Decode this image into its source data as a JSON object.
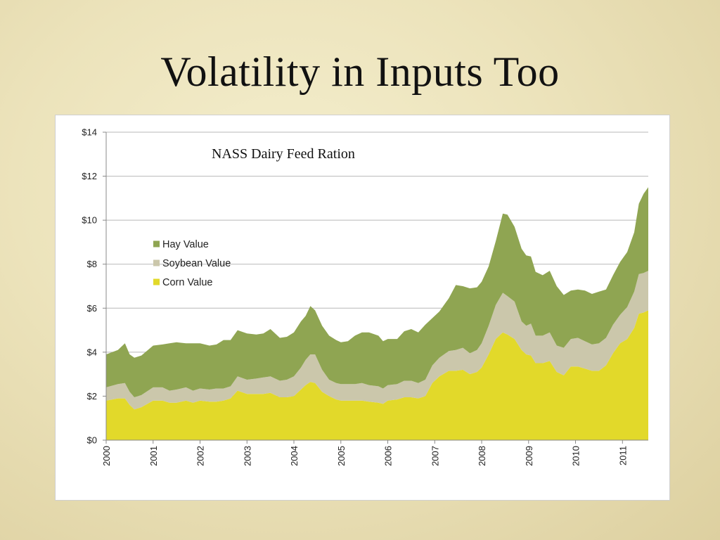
{
  "slide": {
    "title": "Volatility in Inputs Too"
  },
  "chart_data": {
    "type": "area",
    "stacked": true,
    "title": "NASS Dairy Feed Ration",
    "xlabel": "",
    "ylabel": "",
    "ylim": [
      0,
      14
    ],
    "xlim": [
      2000,
      2011.55
    ],
    "y_ticks": [
      "$0",
      "$2",
      "$4",
      "$6",
      "$8",
      "$10",
      "$12",
      "$14"
    ],
    "x_ticks": [
      "2000",
      "2001",
      "2002",
      "2003",
      "2004",
      "2005",
      "2006",
      "2007",
      "2008",
      "2009",
      "2010",
      "2011"
    ],
    "grid": true,
    "legend_position": "left-middle",
    "x": [
      2000.0,
      2000.25,
      2000.4,
      2000.5,
      2000.6,
      2000.75,
      2001.0,
      2001.2,
      2001.35,
      2001.5,
      2001.7,
      2001.85,
      2002.0,
      2002.2,
      2002.35,
      2002.5,
      2002.65,
      2002.8,
      2003.0,
      2003.2,
      2003.35,
      2003.5,
      2003.7,
      2003.85,
      2004.0,
      2004.15,
      2004.25,
      2004.35,
      2004.45,
      2004.6,
      2004.75,
      2004.9,
      2005.0,
      2005.15,
      2005.3,
      2005.45,
      2005.6,
      2005.8,
      2005.9,
      2006.0,
      2006.2,
      2006.35,
      2006.5,
      2006.65,
      2006.8,
      2006.95,
      2007.1,
      2007.3,
      2007.45,
      2007.6,
      2007.75,
      2007.9,
      2008.0,
      2008.15,
      2008.3,
      2008.45,
      2008.55,
      2008.7,
      2008.85,
      2008.95,
      2009.05,
      2009.15,
      2009.3,
      2009.45,
      2009.6,
      2009.75,
      2009.9,
      2010.05,
      2010.2,
      2010.35,
      2010.5,
      2010.65,
      2010.8,
      2010.95,
      2011.1,
      2011.25,
      2011.35,
      2011.45,
      2011.55
    ],
    "series": [
      {
        "name": "Corn Value",
        "color": "#e2d92a",
        "values": [
          1.8,
          1.9,
          1.9,
          1.6,
          1.4,
          1.5,
          1.8,
          1.8,
          1.7,
          1.7,
          1.8,
          1.7,
          1.8,
          1.75,
          1.75,
          1.8,
          1.9,
          2.25,
          2.1,
          2.1,
          2.1,
          2.15,
          1.95,
          1.95,
          2.0,
          2.3,
          2.5,
          2.65,
          2.6,
          2.2,
          2.0,
          1.85,
          1.8,
          1.8,
          1.8,
          1.8,
          1.75,
          1.7,
          1.65,
          1.8,
          1.85,
          1.95,
          1.95,
          1.9,
          2.0,
          2.6,
          2.9,
          3.15,
          3.15,
          3.2,
          3.0,
          3.1,
          3.3,
          3.9,
          4.6,
          4.9,
          4.8,
          4.6,
          4.1,
          3.9,
          3.85,
          3.5,
          3.5,
          3.6,
          3.1,
          2.95,
          3.35,
          3.35,
          3.25,
          3.15,
          3.15,
          3.4,
          3.95,
          4.4,
          4.6,
          5.1,
          5.75,
          5.8,
          5.9
        ]
      },
      {
        "name": "Soybean Value",
        "color": "#cbc7ab",
        "values": [
          0.6,
          0.65,
          0.7,
          0.6,
          0.55,
          0.55,
          0.6,
          0.6,
          0.55,
          0.6,
          0.6,
          0.55,
          0.55,
          0.55,
          0.6,
          0.55,
          0.55,
          0.65,
          0.65,
          0.7,
          0.75,
          0.75,
          0.75,
          0.8,
          0.9,
          1.0,
          1.15,
          1.25,
          1.3,
          1.0,
          0.75,
          0.75,
          0.75,
          0.75,
          0.75,
          0.8,
          0.75,
          0.75,
          0.7,
          0.7,
          0.7,
          0.75,
          0.75,
          0.7,
          0.75,
          0.8,
          0.85,
          0.9,
          0.95,
          1.0,
          0.95,
          1.0,
          1.1,
          1.3,
          1.55,
          1.8,
          1.75,
          1.7,
          1.3,
          1.3,
          1.45,
          1.25,
          1.25,
          1.3,
          1.2,
          1.25,
          1.25,
          1.3,
          1.25,
          1.2,
          1.25,
          1.25,
          1.3,
          1.3,
          1.45,
          1.65,
          1.8,
          1.8,
          1.8
        ]
      },
      {
        "name": "Hay Value",
        "color": "#8fa552",
        "values": [
          1.5,
          1.55,
          1.8,
          1.7,
          1.8,
          1.8,
          1.9,
          1.95,
          2.15,
          2.15,
          2.0,
          2.15,
          2.05,
          2.0,
          2.0,
          2.2,
          2.1,
          2.1,
          2.1,
          2.0,
          2.0,
          2.15,
          1.95,
          1.95,
          2.0,
          2.1,
          2.0,
          2.2,
          2.0,
          2.0,
          2.0,
          1.95,
          1.9,
          1.95,
          2.2,
          2.3,
          2.4,
          2.3,
          2.15,
          2.1,
          2.05,
          2.25,
          2.35,
          2.3,
          2.5,
          2.15,
          2.1,
          2.4,
          2.95,
          2.8,
          2.95,
          2.85,
          2.8,
          2.7,
          2.9,
          3.6,
          3.7,
          3.4,
          3.3,
          3.2,
          3.05,
          2.9,
          2.75,
          2.8,
          2.7,
          2.4,
          2.2,
          2.2,
          2.3,
          2.3,
          2.35,
          2.2,
          2.25,
          2.4,
          2.5,
          2.7,
          3.2,
          3.6,
          3.8
        ]
      }
    ]
  }
}
